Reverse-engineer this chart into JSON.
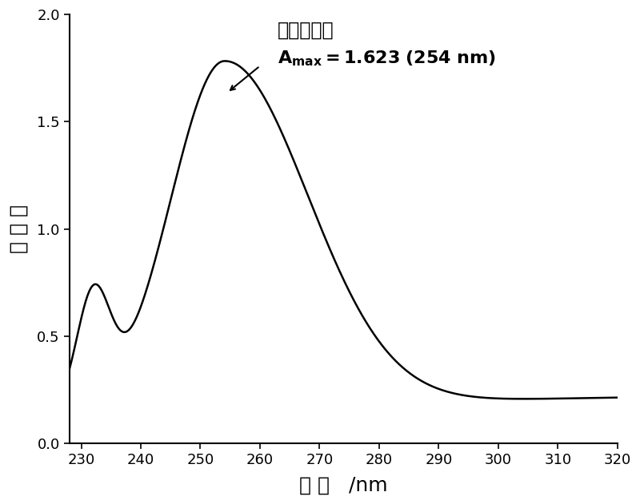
{
  "xmin": 228,
  "xmax": 320,
  "ymin": 0.0,
  "ymax": 2.0,
  "xticks": [
    230,
    240,
    250,
    260,
    270,
    280,
    290,
    300,
    310,
    320
  ],
  "yticks": [
    0.0,
    0.5,
    1.0,
    1.5,
    2.0
  ],
  "xlabel": "波 长   /nm",
  "ylabel": "吸 光 度",
  "line_color": "#000000",
  "background_color": "#ffffff",
  "annotation_chinese": "最大吸光度",
  "annotation_amax": "=1.623 (254 nm)",
  "peak_x": 254,
  "peak_y": 1.623,
  "figsize": [
    8.0,
    6.31
  ],
  "dpi": 100
}
